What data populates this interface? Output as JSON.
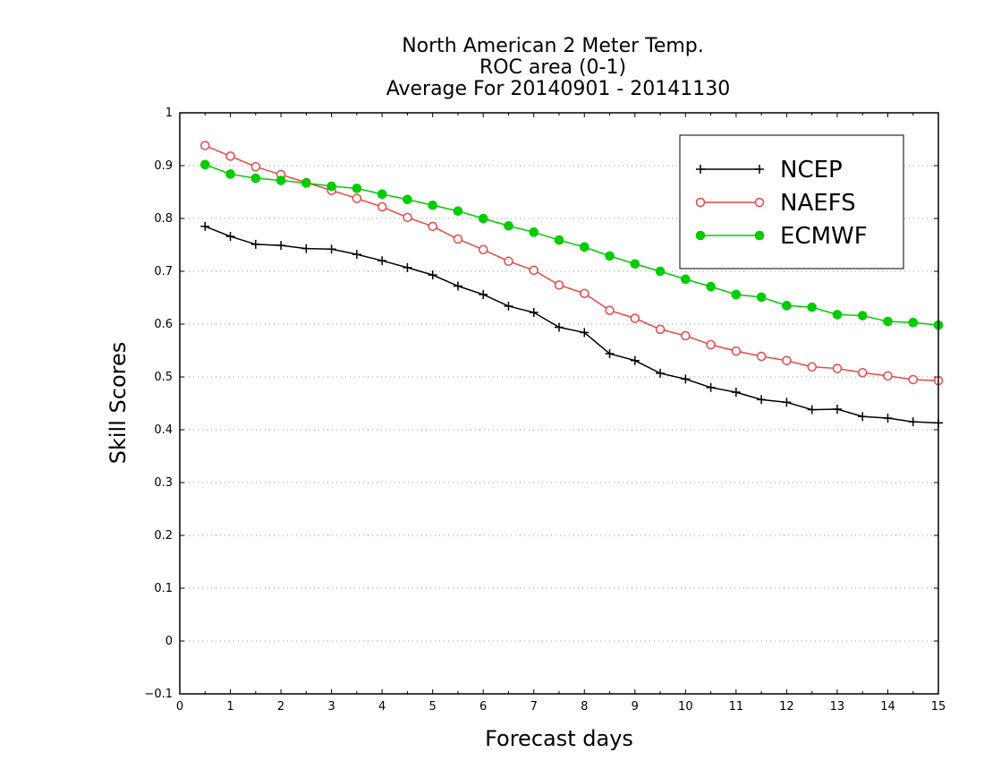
{
  "chart_data": {
    "type": "line",
    "title": [
      "North American 2 Meter Temp.",
      "ROC area (0-1)",
      "Average For 20140901 - 20141130"
    ],
    "xlabel": "Forecast days",
    "ylabel": "Skill Scores",
    "xlim": [
      0,
      15
    ],
    "ylim": [
      -0.1,
      1
    ],
    "x_ticks": [
      0,
      1,
      2,
      3,
      4,
      5,
      6,
      7,
      8,
      9,
      10,
      11,
      12,
      13,
      14,
      15
    ],
    "y_ticks": [
      -0.1,
      0,
      0.1,
      0.2,
      0.3,
      0.4,
      0.5,
      0.6,
      0.7,
      0.8,
      0.9,
      1
    ],
    "y_tick_labels": [
      "−0.1",
      "0",
      "0.1",
      "0.2",
      "0.3",
      "0.4",
      "0.5",
      "0.6",
      "0.7",
      "0.8",
      "0.9",
      "1"
    ],
    "grid": "horizontal dotted",
    "legend_position": "top-right",
    "x": [
      0.5,
      1,
      1.5,
      2,
      2.5,
      3,
      3.5,
      4,
      4.5,
      5,
      5.5,
      6,
      6.5,
      7,
      7.5,
      8,
      8.5,
      9,
      9.5,
      10,
      10.5,
      11,
      11.5,
      12,
      12.5,
      13,
      13.5,
      14,
      14.5,
      15
    ],
    "series": [
      {
        "name": "NCEP",
        "color": "#000000",
        "marker": "plus",
        "values": [
          0.785,
          0.766,
          0.751,
          0.749,
          0.743,
          0.742,
          0.732,
          0.72,
          0.707,
          0.693,
          0.672,
          0.656,
          0.634,
          0.622,
          0.594,
          0.584,
          0.544,
          0.531,
          0.507,
          0.496,
          0.48,
          0.471,
          0.457,
          0.452,
          0.438,
          0.439,
          0.425,
          0.422,
          0.415,
          0.413
        ]
      },
      {
        "name": "NAEFS",
        "color": "#ee4444",
        "marker": "open-circle",
        "values": [
          0.938,
          0.918,
          0.898,
          0.883,
          0.868,
          0.853,
          0.838,
          0.822,
          0.802,
          0.785,
          0.761,
          0.741,
          0.719,
          0.702,
          0.674,
          0.658,
          0.626,
          0.611,
          0.59,
          0.578,
          0.561,
          0.549,
          0.539,
          0.531,
          0.519,
          0.516,
          0.508,
          0.502,
          0.495,
          0.493
        ]
      },
      {
        "name": "ECMWF",
        "color": "#00cc00",
        "marker": "filled-circle",
        "values": [
          0.902,
          0.884,
          0.876,
          0.872,
          0.867,
          0.861,
          0.857,
          0.846,
          0.836,
          0.825,
          0.814,
          0.8,
          0.786,
          0.774,
          0.759,
          0.746,
          0.729,
          0.714,
          0.7,
          0.685,
          0.671,
          0.656,
          0.651,
          0.635,
          0.632,
          0.618,
          0.616,
          0.605,
          0.603,
          0.598
        ]
      }
    ]
  }
}
